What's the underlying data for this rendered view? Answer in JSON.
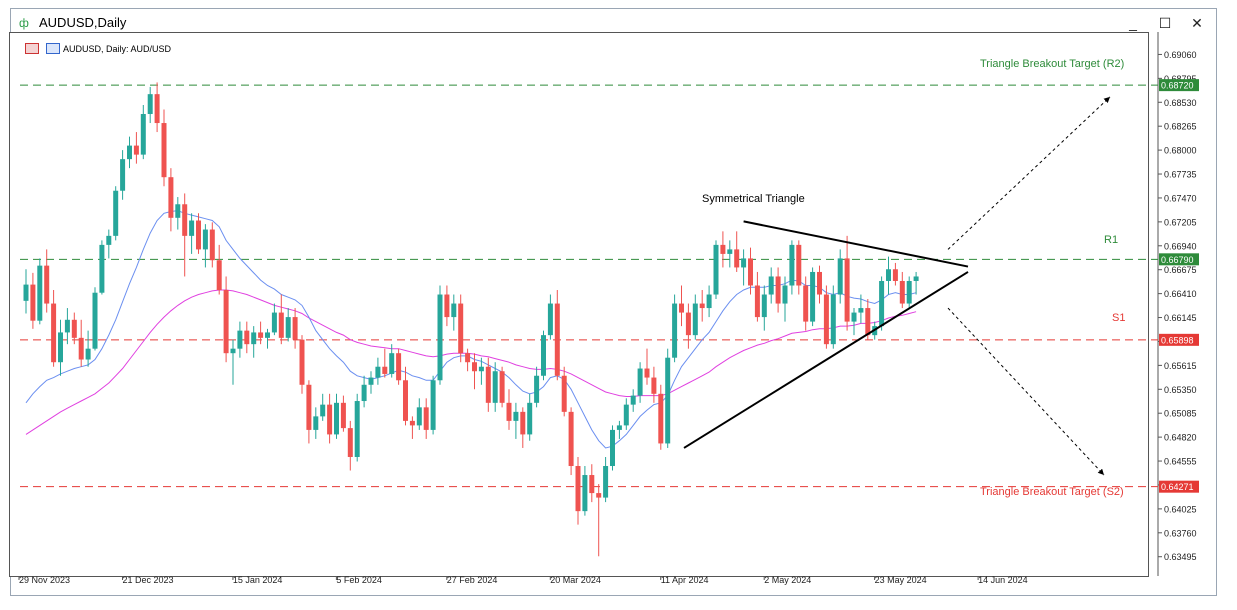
{
  "window": {
    "title": "AUDUSD,Daily",
    "minimize": "_",
    "maximize": "☐",
    "close": "✕"
  },
  "header": {
    "instrument_text": "AUDUSD, Daily:  AUD/USD",
    "icons": [
      "candles-icon",
      "chart-type-icon"
    ]
  },
  "annotations": {
    "symmetrical_triangle": "Symmetrical Triangle",
    "r2_label": "Triangle Breakout Target (R2)",
    "r1_label": "R1",
    "s1_label": "S1",
    "s2_label": "Triangle Breakout Target (S2)"
  },
  "colors": {
    "bull": "#26a69a",
    "bear": "#ef5350",
    "ma_fast": "#6b8ff0",
    "ma_slow": "#e040e0",
    "level_green": "#2e8b3a",
    "level_red": "#e53935"
  },
  "chart_data": {
    "type": "candlestick",
    "y_range": [
      0.6337,
      0.6922
    ],
    "y_ticks": [
      "0.69060",
      "0.68795",
      "0.68530",
      "0.68265",
      "0.68000",
      "0.67735",
      "0.67470",
      "0.67205",
      "0.66940",
      "0.66675",
      "0.66410",
      "0.66145",
      "0.65880",
      "0.65615",
      "0.65350",
      "0.65085",
      "0.64820",
      "0.64555",
      "0.64290",
      "0.64025",
      "0.63760",
      "0.63495"
    ],
    "x_ticks": [
      "29 Nov 2023",
      "21 Dec 2023",
      "15 Jan 2024",
      "5 Feb 2024",
      "27 Feb 2024",
      "20 Mar 2024",
      "11 Apr 2024",
      "2 May 2024",
      "23 May 2024",
      "14 Jun 2024"
    ],
    "levels": [
      {
        "name": "R2",
        "value": 0.6872,
        "label": "0.68720",
        "color": "green"
      },
      {
        "name": "R1",
        "value": 0.6679,
        "label": "0.66790",
        "color": "green"
      },
      {
        "name": "S1",
        "value": 0.65898,
        "label": "0.65898",
        "color": "red"
      },
      {
        "name": "S2",
        "value": 0.64271,
        "label": "0.64271",
        "color": "red"
      }
    ],
    "candles": [
      [
        0.6633,
        0.6668,
        0.6619,
        0.6651
      ],
      [
        0.6651,
        0.6664,
        0.6602,
        0.6611
      ],
      [
        0.6611,
        0.668,
        0.6607,
        0.6672
      ],
      [
        0.6672,
        0.669,
        0.662,
        0.663
      ],
      [
        0.663,
        0.6645,
        0.656,
        0.6565
      ],
      [
        0.6565,
        0.6612,
        0.655,
        0.6598
      ],
      [
        0.6598,
        0.6625,
        0.6585,
        0.6612
      ],
      [
        0.6612,
        0.662,
        0.6585,
        0.6592
      ],
      [
        0.6592,
        0.6612,
        0.656,
        0.6568
      ],
      [
        0.6568,
        0.66,
        0.656,
        0.658
      ],
      [
        0.658,
        0.6648,
        0.6578,
        0.6642
      ],
      [
        0.6642,
        0.67,
        0.664,
        0.6695
      ],
      [
        0.6695,
        0.6712,
        0.668,
        0.6705
      ],
      [
        0.6705,
        0.676,
        0.67,
        0.6755
      ],
      [
        0.6755,
        0.68,
        0.6745,
        0.679
      ],
      [
        0.679,
        0.6815,
        0.678,
        0.6805
      ],
      [
        0.6805,
        0.682,
        0.6785,
        0.6795
      ],
      [
        0.6795,
        0.685,
        0.679,
        0.684
      ],
      [
        0.684,
        0.687,
        0.683,
        0.6862
      ],
      [
        0.6862,
        0.6875,
        0.682,
        0.683
      ],
      [
        0.683,
        0.6845,
        0.676,
        0.677
      ],
      [
        0.677,
        0.678,
        0.671,
        0.6725
      ],
      [
        0.6725,
        0.6748,
        0.6712,
        0.674
      ],
      [
        0.674,
        0.6752,
        0.666,
        0.6705
      ],
      [
        0.6705,
        0.673,
        0.6685,
        0.6722
      ],
      [
        0.6722,
        0.673,
        0.6685,
        0.669
      ],
      [
        0.669,
        0.6718,
        0.667,
        0.6712
      ],
      [
        0.6712,
        0.672,
        0.667,
        0.6678
      ],
      [
        0.6678,
        0.6695,
        0.664,
        0.6645
      ],
      [
        0.6645,
        0.666,
        0.6565,
        0.6575
      ],
      [
        0.6575,
        0.659,
        0.654,
        0.658
      ],
      [
        0.658,
        0.661,
        0.657,
        0.66
      ],
      [
        0.66,
        0.661,
        0.6575,
        0.6585
      ],
      [
        0.6585,
        0.6605,
        0.657,
        0.6598
      ],
      [
        0.6598,
        0.661,
        0.6585,
        0.6592
      ],
      [
        0.6592,
        0.6602,
        0.658,
        0.6598
      ],
      [
        0.6598,
        0.663,
        0.6595,
        0.662
      ],
      [
        0.662,
        0.664,
        0.6585,
        0.6592
      ],
      [
        0.6592,
        0.6625,
        0.6588,
        0.6615
      ],
      [
        0.6615,
        0.6625,
        0.658,
        0.659
      ],
      [
        0.659,
        0.6595,
        0.653,
        0.654
      ],
      [
        0.654,
        0.6545,
        0.6475,
        0.649
      ],
      [
        0.649,
        0.6515,
        0.648,
        0.6505
      ],
      [
        0.6505,
        0.653,
        0.65,
        0.6518
      ],
      [
        0.6518,
        0.653,
        0.6475,
        0.6485
      ],
      [
        0.6485,
        0.653,
        0.648,
        0.652
      ],
      [
        0.652,
        0.6528,
        0.6488,
        0.6492
      ],
      [
        0.6492,
        0.65,
        0.6445,
        0.646
      ],
      [
        0.646,
        0.653,
        0.6455,
        0.6522
      ],
      [
        0.6522,
        0.655,
        0.6515,
        0.654
      ],
      [
        0.654,
        0.6555,
        0.653,
        0.6548
      ],
      [
        0.6548,
        0.657,
        0.654,
        0.656
      ],
      [
        0.656,
        0.658,
        0.6548,
        0.6552
      ],
      [
        0.6552,
        0.6585,
        0.6548,
        0.6575
      ],
      [
        0.6575,
        0.658,
        0.654,
        0.6545
      ],
      [
        0.6545,
        0.656,
        0.6495,
        0.65
      ],
      [
        0.65,
        0.6505,
        0.648,
        0.6495
      ],
      [
        0.6495,
        0.6525,
        0.649,
        0.6515
      ],
      [
        0.6515,
        0.6525,
        0.648,
        0.649
      ],
      [
        0.649,
        0.655,
        0.6485,
        0.6545
      ],
      [
        0.6545,
        0.665,
        0.654,
        0.664
      ],
      [
        0.664,
        0.665,
        0.6605,
        0.6615
      ],
      [
        0.6615,
        0.664,
        0.66,
        0.663
      ],
      [
        0.663,
        0.664,
        0.6565,
        0.6575
      ],
      [
        0.6575,
        0.658,
        0.6555,
        0.6565
      ],
      [
        0.6565,
        0.6575,
        0.6535,
        0.6555
      ],
      [
        0.6555,
        0.657,
        0.654,
        0.656
      ],
      [
        0.656,
        0.657,
        0.651,
        0.652
      ],
      [
        0.652,
        0.6565,
        0.651,
        0.6555
      ],
      [
        0.6555,
        0.656,
        0.6515,
        0.652
      ],
      [
        0.652,
        0.6535,
        0.649,
        0.65
      ],
      [
        0.65,
        0.652,
        0.648,
        0.651
      ],
      [
        0.651,
        0.6515,
        0.647,
        0.6485
      ],
      [
        0.6485,
        0.653,
        0.6478,
        0.652
      ],
      [
        0.652,
        0.656,
        0.6515,
        0.655
      ],
      [
        0.655,
        0.66,
        0.6545,
        0.6595
      ],
      [
        0.6595,
        0.664,
        0.659,
        0.663
      ],
      [
        0.663,
        0.6645,
        0.6545,
        0.655
      ],
      [
        0.655,
        0.656,
        0.6505,
        0.651
      ],
      [
        0.651,
        0.6515,
        0.644,
        0.645
      ],
      [
        0.645,
        0.646,
        0.6385,
        0.64
      ],
      [
        0.64,
        0.645,
        0.6395,
        0.644
      ],
      [
        0.644,
        0.6452,
        0.641,
        0.642
      ],
      [
        0.642,
        0.643,
        0.635,
        0.6415
      ],
      [
        0.6415,
        0.646,
        0.641,
        0.645
      ],
      [
        0.645,
        0.6495,
        0.6445,
        0.649
      ],
      [
        0.649,
        0.65,
        0.648,
        0.6495
      ],
      [
        0.6495,
        0.6525,
        0.649,
        0.6518
      ],
      [
        0.6518,
        0.6535,
        0.651,
        0.6528
      ],
      [
        0.6528,
        0.6565,
        0.652,
        0.6558
      ],
      [
        0.6558,
        0.658,
        0.654,
        0.6548
      ],
      [
        0.6548,
        0.656,
        0.652,
        0.653
      ],
      [
        0.653,
        0.654,
        0.6468,
        0.6475
      ],
      [
        0.6475,
        0.658,
        0.647,
        0.657
      ],
      [
        0.657,
        0.664,
        0.6565,
        0.663
      ],
      [
        0.663,
        0.665,
        0.6605,
        0.662
      ],
      [
        0.662,
        0.663,
        0.658,
        0.6595
      ],
      [
        0.6595,
        0.664,
        0.659,
        0.663
      ],
      [
        0.663,
        0.6645,
        0.661,
        0.6625
      ],
      [
        0.6625,
        0.665,
        0.6615,
        0.664
      ],
      [
        0.664,
        0.67,
        0.6635,
        0.6695
      ],
      [
        0.6695,
        0.671,
        0.667,
        0.6685
      ],
      [
        0.6685,
        0.67,
        0.667,
        0.669
      ],
      [
        0.669,
        0.671,
        0.6665,
        0.667
      ],
      [
        0.667,
        0.669,
        0.665,
        0.668
      ],
      [
        0.668,
        0.6692,
        0.664,
        0.665
      ],
      [
        0.665,
        0.6665,
        0.661,
        0.6615
      ],
      [
        0.6615,
        0.665,
        0.66,
        0.664
      ],
      [
        0.664,
        0.667,
        0.663,
        0.666
      ],
      [
        0.666,
        0.667,
        0.662,
        0.663
      ],
      [
        0.663,
        0.666,
        0.661,
        0.665
      ],
      [
        0.665,
        0.67,
        0.664,
        0.6695
      ],
      [
        0.6695,
        0.67,
        0.664,
        0.665
      ],
      [
        0.665,
        0.666,
        0.66,
        0.661
      ],
      [
        0.661,
        0.667,
        0.6605,
        0.6665
      ],
      [
        0.6665,
        0.6672,
        0.663,
        0.664
      ],
      [
        0.664,
        0.665,
        0.658,
        0.6585
      ],
      [
        0.6585,
        0.665,
        0.658,
        0.664
      ],
      [
        0.664,
        0.669,
        0.663,
        0.668
      ],
      [
        0.668,
        0.6705,
        0.66,
        0.661
      ],
      [
        0.661,
        0.6625,
        0.6595,
        0.662
      ],
      [
        0.662,
        0.664,
        0.6608,
        0.6625
      ],
      [
        0.6625,
        0.6635,
        0.659,
        0.6595
      ],
      [
        0.6595,
        0.661,
        0.659,
        0.6605
      ],
      [
        0.6605,
        0.666,
        0.66,
        0.6655
      ],
      [
        0.6655,
        0.6682,
        0.664,
        0.6668
      ],
      [
        0.6668,
        0.6675,
        0.665,
        0.6655
      ],
      [
        0.6655,
        0.6665,
        0.6625,
        0.663
      ],
      [
        0.663,
        0.666,
        0.6625,
        0.6655
      ],
      [
        0.6655,
        0.6665,
        0.664,
        0.666
      ]
    ],
    "ma_fast": [
      0.652,
      0.653,
      0.6538,
      0.6545,
      0.6548,
      0.6552,
      0.6555,
      0.6558,
      0.656,
      0.6562,
      0.6568,
      0.658,
      0.6595,
      0.6612,
      0.6632,
      0.6652,
      0.667,
      0.669,
      0.6708,
      0.6722,
      0.673,
      0.6732,
      0.6733,
      0.673,
      0.6728,
      0.6726,
      0.6724,
      0.6722,
      0.6715,
      0.67,
      0.669,
      0.668,
      0.6672,
      0.6664,
      0.6656,
      0.665,
      0.6646,
      0.664,
      0.6637,
      0.6634,
      0.6628,
      0.6615,
      0.66,
      0.659,
      0.658,
      0.6572,
      0.6565,
      0.6555,
      0.655,
      0.6548,
      0.6546,
      0.6548,
      0.655,
      0.6553,
      0.6556,
      0.6554,
      0.655,
      0.6548,
      0.6545,
      0.6545,
      0.6555,
      0.6565,
      0.657,
      0.6572,
      0.6572,
      0.6568,
      0.6566,
      0.6562,
      0.6558,
      0.6554,
      0.6548,
      0.654,
      0.6533,
      0.653,
      0.6532,
      0.6538,
      0.6548,
      0.655,
      0.6546,
      0.6535,
      0.652,
      0.6505,
      0.649,
      0.6478,
      0.647,
      0.6472,
      0.6478,
      0.6485,
      0.6495,
      0.6505,
      0.6512,
      0.6518,
      0.652,
      0.6528,
      0.6545,
      0.656,
      0.657,
      0.658,
      0.659,
      0.6598,
      0.661,
      0.6622,
      0.6632,
      0.664,
      0.6645,
      0.6648,
      0.6648,
      0.6648,
      0.665,
      0.665,
      0.6652,
      0.6656,
      0.6655,
      0.665,
      0.665,
      0.6648,
      0.6642,
      0.664,
      0.6642,
      0.6638,
      0.6636,
      0.6635,
      0.6632,
      0.663,
      0.6634,
      0.664,
      0.6642,
      0.664,
      0.664,
      0.6642
    ],
    "ma_slow": [
      0.6485,
      0.649,
      0.6495,
      0.65,
      0.6505,
      0.651,
      0.6514,
      0.6518,
      0.6522,
      0.6526,
      0.653,
      0.6536,
      0.6542,
      0.655,
      0.6558,
      0.6568,
      0.6578,
      0.6588,
      0.6598,
      0.6607,
      0.6615,
      0.6622,
      0.6628,
      0.6633,
      0.6637,
      0.664,
      0.6642,
      0.6644,
      0.6645,
      0.6645,
      0.6644,
      0.6642,
      0.664,
      0.6637,
      0.6634,
      0.6631,
      0.6628,
      0.6626,
      0.6624,
      0.6622,
      0.6619,
      0.6614,
      0.661,
      0.6606,
      0.6602,
      0.6598,
      0.6595,
      0.659,
      0.6587,
      0.6585,
      0.6583,
      0.6582,
      0.6581,
      0.658,
      0.658,
      0.6578,
      0.6576,
      0.6574,
      0.6572,
      0.6571,
      0.6572,
      0.6574,
      0.6575,
      0.6575,
      0.6575,
      0.6574,
      0.6572,
      0.6571,
      0.6569,
      0.6567,
      0.6565,
      0.6562,
      0.656,
      0.6558,
      0.6557,
      0.6557,
      0.6558,
      0.6557,
      0.6555,
      0.6552,
      0.6548,
      0.6544,
      0.654,
      0.6536,
      0.6532,
      0.653,
      0.6528,
      0.6527,
      0.6527,
      0.6528,
      0.6528,
      0.6528,
      0.6528,
      0.653,
      0.6534,
      0.6538,
      0.6542,
      0.6546,
      0.655,
      0.6554,
      0.656,
      0.6565,
      0.657,
      0.6574,
      0.6578,
      0.6581,
      0.6584,
      0.6586,
      0.6589,
      0.6591,
      0.6594,
      0.6597,
      0.6598,
      0.6599,
      0.6601,
      0.6602,
      0.6602,
      0.6603,
      0.6605,
      0.6605,
      0.6606,
      0.6608,
      0.6608,
      0.6609,
      0.6611,
      0.6614,
      0.6616,
      0.6617,
      0.6619,
      0.6621
    ]
  }
}
